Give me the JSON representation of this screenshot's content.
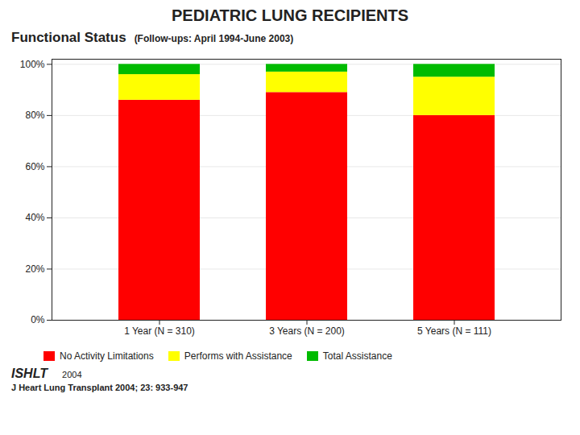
{
  "chart_data": {
    "type": "bar",
    "stacked": true,
    "title": "PEDIATRIC LUNG RECIPIENTS",
    "subtitle": "Functional Status",
    "annotations": [
      "(Follow-ups: April 1994-June 2003)",
      "ISHLT",
      "2004",
      "J Heart Lung Transplant 2004; 23: 933-947"
    ],
    "categories": [
      "1 Year (N = 310)",
      "3 Years (N = 200)",
      "5 Years (N = 111)"
    ],
    "series": [
      {
        "name": "No Activity Limitations",
        "color": "#FF0000",
        "values": [
          86,
          89,
          80
        ]
      },
      {
        "name": "Performs with Assistance",
        "color": "#FFFF00",
        "values": [
          10,
          8,
          15
        ]
      },
      {
        "name": "Total Assistance",
        "color": "#00BB00",
        "values": [
          4,
          3,
          5
        ]
      }
    ],
    "ylim": [
      0,
      102
    ],
    "yticks": [
      {
        "value": 0,
        "label": "0%"
      },
      {
        "value": 20,
        "label": "20%"
      },
      {
        "value": 40,
        "label": "40%"
      },
      {
        "value": 60,
        "label": "60%"
      },
      {
        "value": 80,
        "label": "80%"
      },
      {
        "value": 100,
        "label": "100%"
      }
    ],
    "grid": true,
    "legend": "lower left"
  }
}
